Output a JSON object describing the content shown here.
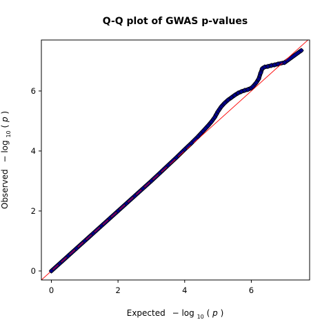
{
  "chart_data": {
    "type": "scatter",
    "title": "Q-Q plot of GWAS p-values",
    "xlabel": {
      "prefix": "Expected",
      "minus": "−",
      "log": "log",
      "base": "10",
      "open_paren": "(",
      "var": "p",
      "close_paren": ")"
    },
    "ylabel": {
      "prefix": "Observed",
      "minus": "−",
      "log": "log",
      "base": "10",
      "open_paren": "(",
      "var": "p",
      "close_paren": ")"
    },
    "xlim": [
      -0.3,
      7.75
    ],
    "ylim": [
      -0.3,
      7.7
    ],
    "xticks": [
      0,
      2,
      4,
      6
    ],
    "yticks": [
      0,
      2,
      4,
      6
    ],
    "xtick_labels": [
      "0",
      "2",
      "4",
      "6"
    ],
    "ytick_labels": [
      "0",
      "2",
      "4",
      "6"
    ],
    "grid": false,
    "legend": "none",
    "reference_line": {
      "slope": 1,
      "intercept": 0,
      "color": "#ff0000"
    },
    "marker_fill": "#00008b",
    "marker_edge": "#000000",
    "points": {
      "x": [
        0.0,
        0.25,
        0.5,
        0.75,
        1.0,
        1.25,
        1.5,
        1.75,
        2.0,
        2.25,
        2.5,
        2.75,
        3.0,
        3.25,
        3.5,
        3.75,
        4.0,
        4.2,
        4.4,
        4.55,
        4.7,
        4.8,
        4.9,
        4.95,
        5.0,
        5.05,
        5.1,
        5.2,
        5.3,
        5.4,
        5.5,
        5.6,
        5.7,
        5.8,
        5.9,
        6.0,
        6.05,
        6.15,
        6.22,
        6.28,
        6.33,
        6.4,
        6.5,
        6.6,
        6.7,
        6.8,
        7.0,
        7.5
      ],
      "y": [
        0.0,
        0.25,
        0.5,
        0.75,
        1.0,
        1.25,
        1.5,
        1.75,
        2.0,
        2.25,
        2.5,
        2.75,
        3.0,
        3.26,
        3.52,
        3.78,
        4.05,
        4.26,
        4.48,
        4.66,
        4.84,
        4.97,
        5.12,
        5.22,
        5.32,
        5.4,
        5.48,
        5.6,
        5.7,
        5.78,
        5.86,
        5.93,
        5.98,
        6.02,
        6.05,
        6.1,
        6.15,
        6.28,
        6.4,
        6.6,
        6.75,
        6.8,
        6.82,
        6.85,
        6.87,
        6.9,
        6.95,
        7.35
      ]
    }
  }
}
